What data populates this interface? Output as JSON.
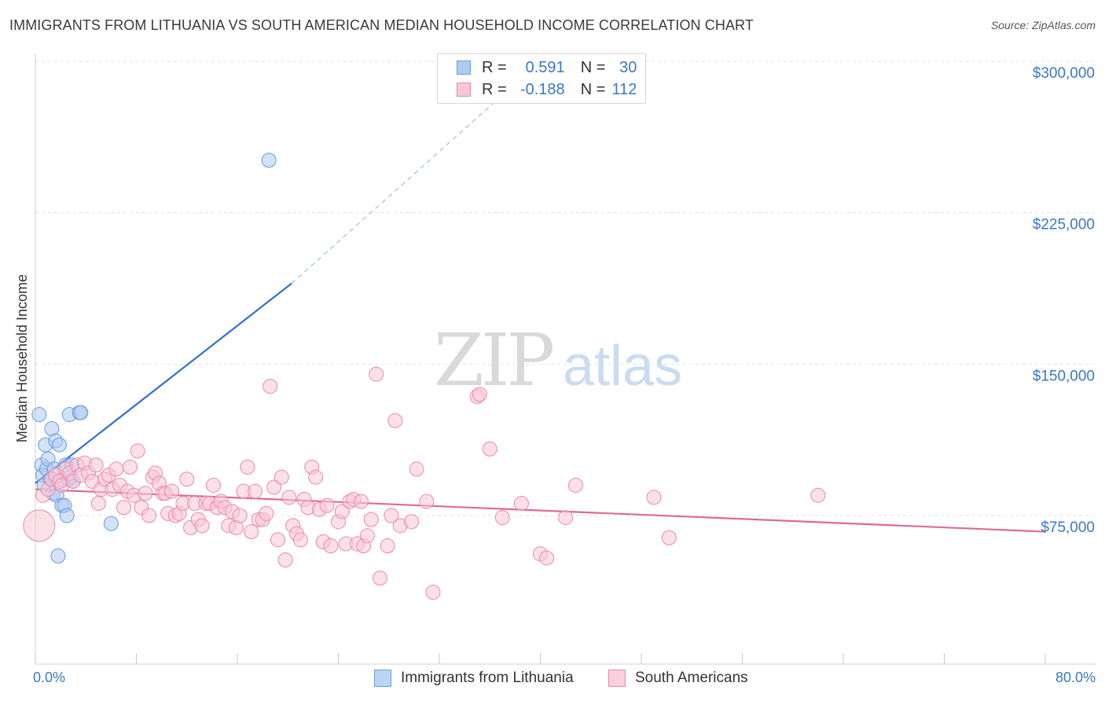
{
  "title": "IMMIGRANTS FROM LITHUANIA VS SOUTH AMERICAN MEDIAN HOUSEHOLD INCOME CORRELATION CHART",
  "source": "Source: ZipAtlas.com",
  "watermark": {
    "zip": "ZIP",
    "atlas": "atlas"
  },
  "legend": {
    "rows": [
      {
        "r_label": "R =",
        "r_value": "0.591",
        "n_label": "N =",
        "n_value": "30",
        "color": "#aecbf0",
        "border": "#6a9bdc"
      },
      {
        "r_label": "R =",
        "r_value": "-0.188",
        "n_label": "N =",
        "n_value": "112",
        "color": "#f9c6d6",
        "border": "#e88aa8"
      }
    ]
  },
  "bottom_legend": [
    {
      "label": "Immigrants from Lithuania",
      "color": "#bcd4f4",
      "border": "#6a9bdc"
    },
    {
      "label": "South Americans",
      "color": "#fbd0de",
      "border": "#e88aa8"
    }
  ],
  "chart_data": {
    "type": "scatter",
    "title": "IMMIGRANTS FROM LITHUANIA VS SOUTH AMERICAN MEDIAN HOUSEHOLD INCOME CORRELATION CHART",
    "xlabel": "",
    "ylabel": "Median Household Income",
    "xlim": [
      0,
      80
    ],
    "ylim": [
      0,
      310000
    ],
    "x_tick_labels": [
      "0.0%",
      "80.0%"
    ],
    "y_ticks": [
      75000,
      150000,
      225000,
      300000
    ],
    "y_tick_labels": [
      "$75,000",
      "$150,000",
      "$225,000",
      "$300,000"
    ],
    "grid": true,
    "legend_position": "top-center",
    "series": [
      {
        "name": "Immigrants from Lithuania",
        "color": "#6a9bdc",
        "fill": "#aecbf0",
        "points": [
          [
            0.3,
            125000
          ],
          [
            0.5,
            100000
          ],
          [
            0.6,
            95000
          ],
          [
            0.7,
            90000
          ],
          [
            0.8,
            110000
          ],
          [
            0.9,
            98000
          ],
          [
            1.0,
            103000
          ],
          [
            1.2,
            93000
          ],
          [
            1.3,
            118000
          ],
          [
            1.4,
            86000
          ],
          [
            1.5,
            98000
          ],
          [
            1.6,
            112000
          ],
          [
            1.7,
            85000
          ],
          [
            1.8,
            55000
          ],
          [
            1.9,
            110000
          ],
          [
            2.0,
            92000
          ],
          [
            2.1,
            80000
          ],
          [
            2.2,
            93000
          ],
          [
            2.3,
            80000
          ],
          [
            2.4,
            100000
          ],
          [
            2.5,
            75000
          ],
          [
            2.6,
            93000
          ],
          [
            2.8,
            94000
          ],
          [
            2.9,
            100000
          ],
          [
            3.0,
            92000
          ],
          [
            2.7,
            125000
          ],
          [
            3.5,
            126000
          ],
          [
            3.6,
            126000
          ],
          [
            6.0,
            71000
          ],
          [
            18.5,
            251000
          ]
        ],
        "trend": {
          "x0": 0,
          "y0": 91000,
          "x1": 20.3,
          "y1": 190000,
          "dashed_to_x": 40,
          "dashed_to_y": 300000
        }
      },
      {
        "name": "South Americans",
        "color": "#e88aa8",
        "fill": "#f9c6d6",
        "points": [
          [
            0.3,
            70000
          ],
          [
            0.6,
            85000
          ],
          [
            1.0,
            88000
          ],
          [
            1.3,
            93000
          ],
          [
            1.6,
            95000
          ],
          [
            1.9,
            92000
          ],
          [
            2.1,
            90000
          ],
          [
            2.4,
            98000
          ],
          [
            2.7,
            96000
          ],
          [
            3.0,
            92000
          ],
          [
            3.3,
            100000
          ],
          [
            3.6,
            95000
          ],
          [
            3.9,
            101000
          ],
          [
            4.2,
            96000
          ],
          [
            4.5,
            92000
          ],
          [
            4.8,
            100000
          ],
          [
            5.0,
            81000
          ],
          [
            5.2,
            88000
          ],
          [
            5.5,
            93000
          ],
          [
            5.8,
            95000
          ],
          [
            6.1,
            88000
          ],
          [
            6.4,
            98000
          ],
          [
            6.7,
            90000
          ],
          [
            7.0,
            79000
          ],
          [
            7.3,
            87000
          ],
          [
            7.5,
            99000
          ],
          [
            7.8,
            85000
          ],
          [
            8.1,
            107000
          ],
          [
            8.4,
            79000
          ],
          [
            8.7,
            86000
          ],
          [
            9.0,
            75000
          ],
          [
            9.3,
            94000
          ],
          [
            9.5,
            96000
          ],
          [
            9.8,
            91000
          ],
          [
            10.1,
            86000
          ],
          [
            10.3,
            86000
          ],
          [
            10.5,
            76000
          ],
          [
            10.8,
            87000
          ],
          [
            11.1,
            75000
          ],
          [
            11.4,
            76000
          ],
          [
            11.7,
            81000
          ],
          [
            12.0,
            93000
          ],
          [
            12.3,
            69000
          ],
          [
            12.6,
            81000
          ],
          [
            12.9,
            73000
          ],
          [
            13.2,
            70000
          ],
          [
            13.5,
            81000
          ],
          [
            13.8,
            81000
          ],
          [
            14.1,
            90000
          ],
          [
            14.4,
            79000
          ],
          [
            14.7,
            82000
          ],
          [
            15.0,
            79000
          ],
          [
            15.3,
            70000
          ],
          [
            15.6,
            77000
          ],
          [
            15.9,
            69000
          ],
          [
            16.2,
            75000
          ],
          [
            16.5,
            87000
          ],
          [
            16.8,
            99000
          ],
          [
            17.1,
            67000
          ],
          [
            17.4,
            87000
          ],
          [
            17.7,
            73000
          ],
          [
            18.0,
            73000
          ],
          [
            18.3,
            76000
          ],
          [
            18.6,
            139000
          ],
          [
            18.9,
            89000
          ],
          [
            19.2,
            63000
          ],
          [
            19.5,
            94000
          ],
          [
            19.8,
            53000
          ],
          [
            20.1,
            84000
          ],
          [
            20.4,
            70000
          ],
          [
            20.7,
            66000
          ],
          [
            21.0,
            63000
          ],
          [
            21.3,
            83000
          ],
          [
            21.6,
            79000
          ],
          [
            21.9,
            99000
          ],
          [
            22.2,
            94000
          ],
          [
            22.5,
            78000
          ],
          [
            22.8,
            62000
          ],
          [
            23.1,
            80000
          ],
          [
            23.4,
            60000
          ],
          [
            24.0,
            72000
          ],
          [
            24.3,
            77000
          ],
          [
            24.6,
            61000
          ],
          [
            24.9,
            82000
          ],
          [
            25.2,
            83000
          ],
          [
            25.5,
            61000
          ],
          [
            25.8,
            82000
          ],
          [
            26.0,
            60000
          ],
          [
            26.3,
            65000
          ],
          [
            26.6,
            73000
          ],
          [
            27.0,
            145000
          ],
          [
            27.3,
            44000
          ],
          [
            27.9,
            60000
          ],
          [
            28.2,
            75000
          ],
          [
            28.5,
            122000
          ],
          [
            28.9,
            70000
          ],
          [
            29.8,
            72000
          ],
          [
            30.2,
            98000
          ],
          [
            31.0,
            82000
          ],
          [
            31.5,
            37000
          ],
          [
            35.0,
            134000
          ],
          [
            35.2,
            135000
          ],
          [
            36.0,
            108000
          ],
          [
            37.0,
            74000
          ],
          [
            38.5,
            81000
          ],
          [
            40.0,
            56000
          ],
          [
            40.5,
            54000
          ],
          [
            42.0,
            74000
          ],
          [
            42.8,
            90000
          ],
          [
            49.0,
            84000
          ],
          [
            50.2,
            64000
          ],
          [
            62.0,
            85000
          ]
        ],
        "trend": {
          "x0": 0,
          "y0": 88000,
          "x1": 80,
          "y1": 67000
        }
      }
    ]
  }
}
